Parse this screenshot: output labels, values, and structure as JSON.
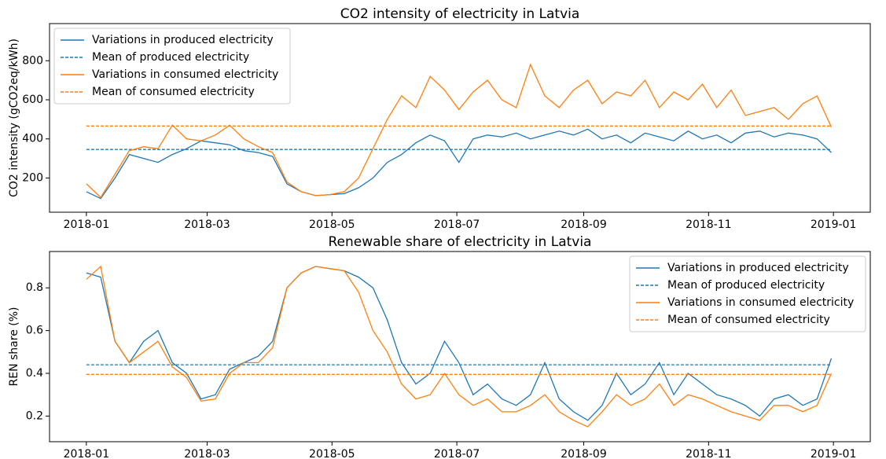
{
  "chart_data": [
    {
      "type": "line",
      "title": "CO2 intensity of electricity in Latvia",
      "ylabel": "CO2 intensity (gCO2eq/kWh)",
      "x": [
        0,
        7,
        14,
        21,
        28,
        35,
        42,
        49,
        56,
        63,
        70,
        77,
        84,
        91,
        98,
        105,
        112,
        119,
        126,
        133,
        140,
        147,
        154,
        161,
        168,
        175,
        182,
        189,
        196,
        203,
        210,
        217,
        224,
        231,
        238,
        245,
        252,
        259,
        266,
        273,
        280,
        287,
        294,
        301,
        308,
        315,
        322,
        329,
        336,
        343,
        350,
        357,
        364
      ],
      "xlim": [
        -18,
        383
      ],
      "xticks": [
        {
          "value": 0,
          "label": "2018-01"
        },
        {
          "value": 59,
          "label": "2018-03"
        },
        {
          "value": 120,
          "label": "2018-05"
        },
        {
          "value": 181,
          "label": "2018-07"
        },
        {
          "value": 243,
          "label": "2018-09"
        },
        {
          "value": 304,
          "label": "2018-11"
        },
        {
          "value": 365,
          "label": "2019-01"
        }
      ],
      "ylim": [
        25,
        990
      ],
      "yticks": [
        200,
        400,
        600,
        800
      ],
      "legend": "upper left",
      "series": [
        {
          "name": "Variations in produced electricity",
          "color": "#1f77b4",
          "style": "solid",
          "values": [
            130,
            95,
            200,
            320,
            300,
            280,
            320,
            350,
            390,
            380,
            370,
            340,
            330,
            310,
            170,
            130,
            110,
            115,
            120,
            150,
            200,
            280,
            320,
            380,
            420,
            390,
            280,
            400,
            420,
            410,
            430,
            400,
            420,
            440,
            420,
            450,
            400,
            420,
            380,
            430,
            410,
            390,
            440,
            400,
            420,
            380,
            430,
            440,
            410,
            430,
            420,
            400,
            330
          ]
        },
        {
          "name": "Mean of produced electricity",
          "color": "#1f77b4",
          "style": "dashed",
          "x": [
            0,
            364
          ],
          "values": [
            346,
            346
          ]
        },
        {
          "name": "Variations in consumed electricity",
          "color": "#ff7f0e",
          "style": "solid",
          "values": [
            170,
            100,
            220,
            340,
            360,
            350,
            470,
            400,
            390,
            420,
            470,
            400,
            360,
            330,
            180,
            130,
            110,
            115,
            130,
            200,
            350,
            500,
            620,
            560,
            720,
            650,
            550,
            640,
            700,
            600,
            560,
            780,
            620,
            560,
            650,
            700,
            580,
            640,
            620,
            700,
            560,
            640,
            600,
            680,
            560,
            650,
            520,
            540,
            560,
            500,
            580,
            620,
            460
          ]
        },
        {
          "name": "Mean of consumed electricity",
          "color": "#ff7f0e",
          "style": "dashed",
          "x": [
            0,
            364
          ],
          "values": [
            466,
            466
          ]
        }
      ]
    },
    {
      "type": "line",
      "title": "Renewable share of electricity in Latvia",
      "ylabel": "REN share (%)",
      "x": [
        0,
        7,
        14,
        21,
        28,
        35,
        42,
        49,
        56,
        63,
        70,
        77,
        84,
        91,
        98,
        105,
        112,
        119,
        126,
        133,
        140,
        147,
        154,
        161,
        168,
        175,
        182,
        189,
        196,
        203,
        210,
        217,
        224,
        231,
        238,
        245,
        252,
        259,
        266,
        273,
        280,
        287,
        294,
        301,
        308,
        315,
        322,
        329,
        336,
        343,
        350,
        357,
        364
      ],
      "xlim": [
        -18,
        383
      ],
      "xticks": [
        {
          "value": 0,
          "label": "2018-01"
        },
        {
          "value": 59,
          "label": "2018-03"
        },
        {
          "value": 120,
          "label": "2018-05"
        },
        {
          "value": 181,
          "label": "2018-07"
        },
        {
          "value": 243,
          "label": "2018-09"
        },
        {
          "value": 304,
          "label": "2018-11"
        },
        {
          "value": 365,
          "label": "2019-01"
        }
      ],
      "ylim": [
        0.08,
        0.97
      ],
      "yticks": [
        0.2,
        0.4,
        0.6,
        0.8
      ],
      "legend": "upper right",
      "series": [
        {
          "name": "Variations in produced electricity",
          "color": "#1f77b4",
          "style": "solid",
          "values": [
            0.87,
            0.85,
            0.55,
            0.45,
            0.55,
            0.6,
            0.45,
            0.4,
            0.28,
            0.3,
            0.42,
            0.45,
            0.48,
            0.55,
            0.8,
            0.87,
            0.9,
            0.89,
            0.88,
            0.85,
            0.8,
            0.65,
            0.45,
            0.35,
            0.4,
            0.55,
            0.45,
            0.3,
            0.35,
            0.28,
            0.25,
            0.3,
            0.45,
            0.28,
            0.22,
            0.18,
            0.25,
            0.4,
            0.3,
            0.35,
            0.45,
            0.3,
            0.4,
            0.35,
            0.3,
            0.28,
            0.25,
            0.2,
            0.28,
            0.3,
            0.25,
            0.28,
            0.47
          ]
        },
        {
          "name": "Mean of produced electricity",
          "color": "#1f77b4",
          "style": "dashed",
          "x": [
            0,
            364
          ],
          "values": [
            0.44,
            0.44
          ]
        },
        {
          "name": "Variations in consumed electricity",
          "color": "#ff7f0e",
          "style": "solid",
          "values": [
            0.84,
            0.9,
            0.55,
            0.45,
            0.5,
            0.55,
            0.43,
            0.38,
            0.27,
            0.28,
            0.4,
            0.45,
            0.45,
            0.52,
            0.8,
            0.87,
            0.9,
            0.89,
            0.88,
            0.78,
            0.6,
            0.5,
            0.35,
            0.28,
            0.3,
            0.4,
            0.3,
            0.25,
            0.28,
            0.22,
            0.22,
            0.25,
            0.3,
            0.22,
            0.18,
            0.15,
            0.22,
            0.3,
            0.25,
            0.28,
            0.35,
            0.25,
            0.3,
            0.28,
            0.25,
            0.22,
            0.2,
            0.18,
            0.25,
            0.25,
            0.22,
            0.25,
            0.4
          ]
        },
        {
          "name": "Mean of consumed electricity",
          "color": "#ff7f0e",
          "style": "dashed",
          "x": [
            0,
            364
          ],
          "values": [
            0.395,
            0.395
          ]
        }
      ]
    }
  ]
}
